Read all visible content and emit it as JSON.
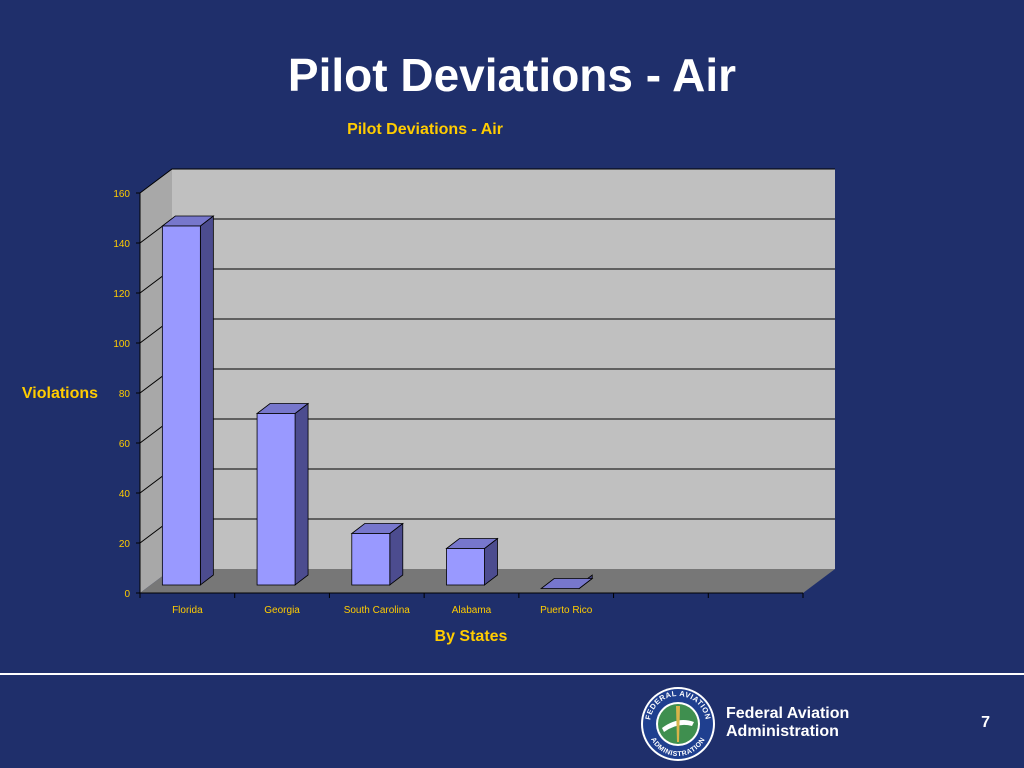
{
  "slide": {
    "title": "Pilot Deviations - Air",
    "page_number": "7"
  },
  "footer": {
    "agency_line1": "Federal Aviation",
    "agency_line2": "Administration",
    "seal_text_top": "FEDERAL AVIATION",
    "seal_text_bottom": "ADMINISTRATION"
  },
  "chart_data": {
    "type": "bar",
    "title": "Pilot Deviations - Air",
    "xlabel": "By States",
    "ylabel": "Violations",
    "categories": [
      "Florida",
      "Georgia",
      "South Carolina",
      "Alabama",
      "Puerto Rico",
      "",
      ""
    ],
    "values": [
      150,
      75,
      27,
      21,
      5,
      null,
      null
    ],
    "ylim": [
      0,
      160
    ],
    "yticks": [
      0,
      20,
      40,
      60,
      80,
      100,
      120,
      140,
      160
    ],
    "grid": true,
    "colors": {
      "bar_front": "#9999ff",
      "bar_side": "#4c4c8f",
      "bar_top": "#7777cc",
      "plot_wall": "#c0c0c0",
      "floor": "#777777",
      "label": "#ffcc00"
    }
  }
}
